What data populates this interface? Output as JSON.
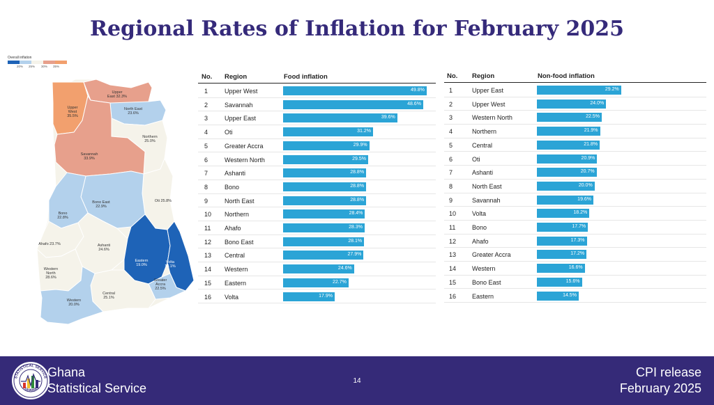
{
  "title": "Regional Rates of Inflation for February 2025",
  "colors": {
    "title": "#352a7a",
    "bar": "#2ba4d6",
    "footer_bg": "#352a78",
    "map_dark_blue": "#1e63b7",
    "map_light_blue": "#b3d1ec",
    "map_pale": "#f5f3ea",
    "map_salmon": "#e7a08c",
    "map_orange": "#f2a06e"
  },
  "map": {
    "legend": {
      "title": "Overall inflation",
      "ticks": [
        "20%",
        "25%",
        "30%",
        "35%"
      ]
    },
    "regions": [
      {
        "name": "Upper West",
        "value": "35.5%",
        "label_lines": [
          "Upper",
          "West",
          "35.5%"
        ]
      },
      {
        "name": "Upper East",
        "value": "32.3%",
        "label_lines": [
          "Upper",
          "East 32.3%"
        ]
      },
      {
        "name": "North East",
        "value": "23.6%",
        "label_lines": [
          "North East",
          "23.6%"
        ]
      },
      {
        "name": "Northern",
        "value": "25.0%",
        "label_lines": [
          "Northern",
          "25.0%"
        ]
      },
      {
        "name": "Savannah",
        "value": "33.9%",
        "label_lines": [
          "Savannah",
          "33.9%"
        ]
      },
      {
        "name": "Oti",
        "value": "25.8%",
        "label_lines": [
          "Oti 25.8%"
        ]
      },
      {
        "name": "Bono East",
        "value": "22.9%",
        "label_lines": [
          "Bono East",
          "22.9%"
        ]
      },
      {
        "name": "Bono",
        "value": "22.8%",
        "label_lines": [
          "Bono",
          "22.8%"
        ]
      },
      {
        "name": "Ahafo",
        "value": "23.7%",
        "label_lines": [
          "Ahafo 23.7%"
        ]
      },
      {
        "name": "Ashanti",
        "value": "24.6%",
        "label_lines": [
          "Ashanti",
          "24.6%"
        ]
      },
      {
        "name": "Eastern",
        "value": "19.0%",
        "label_lines": [
          "Eastern",
          "19.0%"
        ]
      },
      {
        "name": "Volta",
        "value": "18.1%",
        "label_lines": [
          "Volta",
          "18.1%"
        ]
      },
      {
        "name": "Greater Accra",
        "value": "22.5%",
        "label_lines": [
          "Greater",
          "Accra",
          "22.5%"
        ]
      },
      {
        "name": "Western North",
        "value": "28.6%",
        "label_lines": [
          "Western",
          "North",
          "28.6%"
        ]
      },
      {
        "name": "Western",
        "value": "20.0%",
        "label_lines": [
          "Western",
          "20.0%"
        ]
      },
      {
        "name": "Central",
        "value": "25.1%",
        "label_lines": [
          "Central",
          "25.1%"
        ]
      }
    ]
  },
  "chart_data": [
    {
      "type": "bar",
      "orientation": "horizontal",
      "columns": [
        "No.",
        "Region",
        "Food inflation"
      ],
      "categories": [
        "Upper West",
        "Savannah",
        "Upper East",
        "Oti",
        "Greater Accra",
        "Western North",
        "Ashanti",
        "Bono",
        "North East",
        "Northern",
        "Ahafo",
        "Bono East",
        "Central",
        "Western",
        "Eastern",
        "Volta"
      ],
      "values": [
        49.8,
        48.6,
        39.6,
        31.2,
        29.9,
        29.5,
        28.8,
        28.8,
        28.8,
        28.4,
        28.3,
        28.1,
        27.9,
        24.6,
        22.7,
        17.9
      ],
      "labels": [
        "49.8%",
        "48.6%",
        "39.6%",
        "31.2%",
        "29.9%",
        "29.5%",
        "28.8%",
        "28.8%",
        "28.8%",
        "28.4%",
        "28.3%",
        "28.1%",
        "27.9%",
        "24.6%",
        "22.7%",
        "17.9%"
      ],
      "xlim": [
        0,
        52
      ]
    },
    {
      "type": "bar",
      "orientation": "horizontal",
      "columns": [
        "No.",
        "Region",
        "Non-food inflation"
      ],
      "categories": [
        "Upper East",
        "Upper West",
        "Western North",
        "Northern",
        "Central",
        "Oti",
        "Ashanti",
        "North East",
        "Savannah",
        "Volta",
        "Bono",
        "Ahafo",
        "Greater Accra",
        "Western",
        "Bono East",
        "Eastern"
      ],
      "values": [
        29.2,
        24.0,
        22.5,
        21.9,
        21.8,
        20.9,
        20.7,
        20.0,
        19.6,
        18.2,
        17.7,
        17.3,
        17.2,
        16.6,
        15.6,
        14.5
      ],
      "labels": [
        "29.2%",
        "24.0%",
        "22.5%",
        "21.9%",
        "21.8%",
        "20.9%",
        "20.7%",
        "20.0%",
        "19.6%",
        "18.2%",
        "17.7%",
        "17.3%",
        "17.2%",
        "16.6%",
        "15.6%",
        "14.5%"
      ],
      "xlim": [
        0,
        52
      ]
    }
  ],
  "footer": {
    "org_line1": "Ghana",
    "org_line2": "Statistical Service",
    "page_number": "14",
    "release_line1": "CPI release",
    "release_line2": "February  2025",
    "logo_top_text": "STATISTICAL SERVICE",
    "logo_bottom_text": "GHANA"
  }
}
